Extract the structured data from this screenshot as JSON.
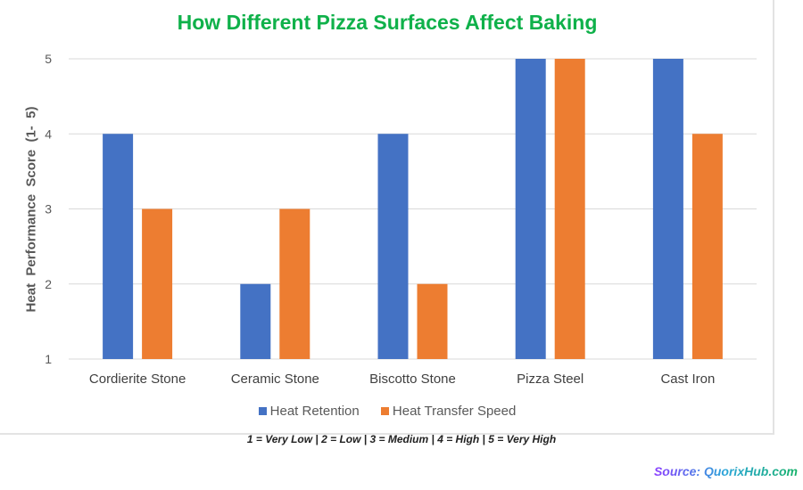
{
  "chart_data": {
    "type": "bar",
    "title": "How Different Pizza Surfaces Affect Baking",
    "ylabel": "Heat  Performance  Score  (1-  5)",
    "xlabel": "",
    "ylim": [
      1,
      5
    ],
    "yticks": [
      "1",
      "2",
      "3",
      "4",
      "5"
    ],
    "grid": true,
    "legend_position": "bottom",
    "categories": [
      "Cordierite Stone",
      "Ceramic Stone",
      "Biscotto Stone",
      "Pizza Steel",
      "Cast Iron"
    ],
    "series": [
      {
        "name": "Heat Retention",
        "color": "#4472c4",
        "values": [
          4,
          2,
          4,
          5,
          5
        ]
      },
      {
        "name": "Heat Transfer Speed",
        "color": "#ed7d31",
        "values": [
          3,
          3,
          2,
          5,
          4
        ]
      }
    ]
  },
  "note": "1 = Very Low | 2 = Low | 3 = Medium | 4 = High | 5 = Very High",
  "source": "Source: QuorixHub.com"
}
